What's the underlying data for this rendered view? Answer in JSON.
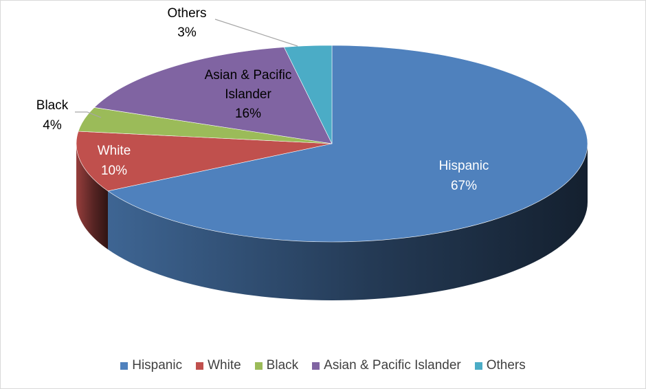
{
  "chart_data": {
    "type": "pie",
    "title": "",
    "slices": [
      {
        "label": "Hispanic",
        "value": 67,
        "display": "67%",
        "color": "#4F81BD"
      },
      {
        "label": "White",
        "value": 10,
        "display": "10%",
        "color": "#C0504D"
      },
      {
        "label": "Black",
        "value": 4,
        "display": "4%",
        "color": "#9BBB59"
      },
      {
        "label": "Asian & Pacific Islander",
        "value": 16,
        "display": "16%",
        "color": "#8064A2"
      },
      {
        "label": "Others",
        "value": 3,
        "display": "3%",
        "color": "#4BACC6"
      }
    ],
    "data_labels": [
      {
        "lines": [
          "Hispanic",
          "67%"
        ]
      },
      {
        "lines": [
          "White",
          "10%"
        ]
      },
      {
        "lines": [
          "Black",
          "4%"
        ]
      },
      {
        "lines": [
          "Asian & Pacific",
          "Islander",
          "16%"
        ]
      },
      {
        "lines": [
          "Others",
          "3%"
        ]
      }
    ],
    "style": "3d-pie",
    "legend_position": "bottom"
  }
}
